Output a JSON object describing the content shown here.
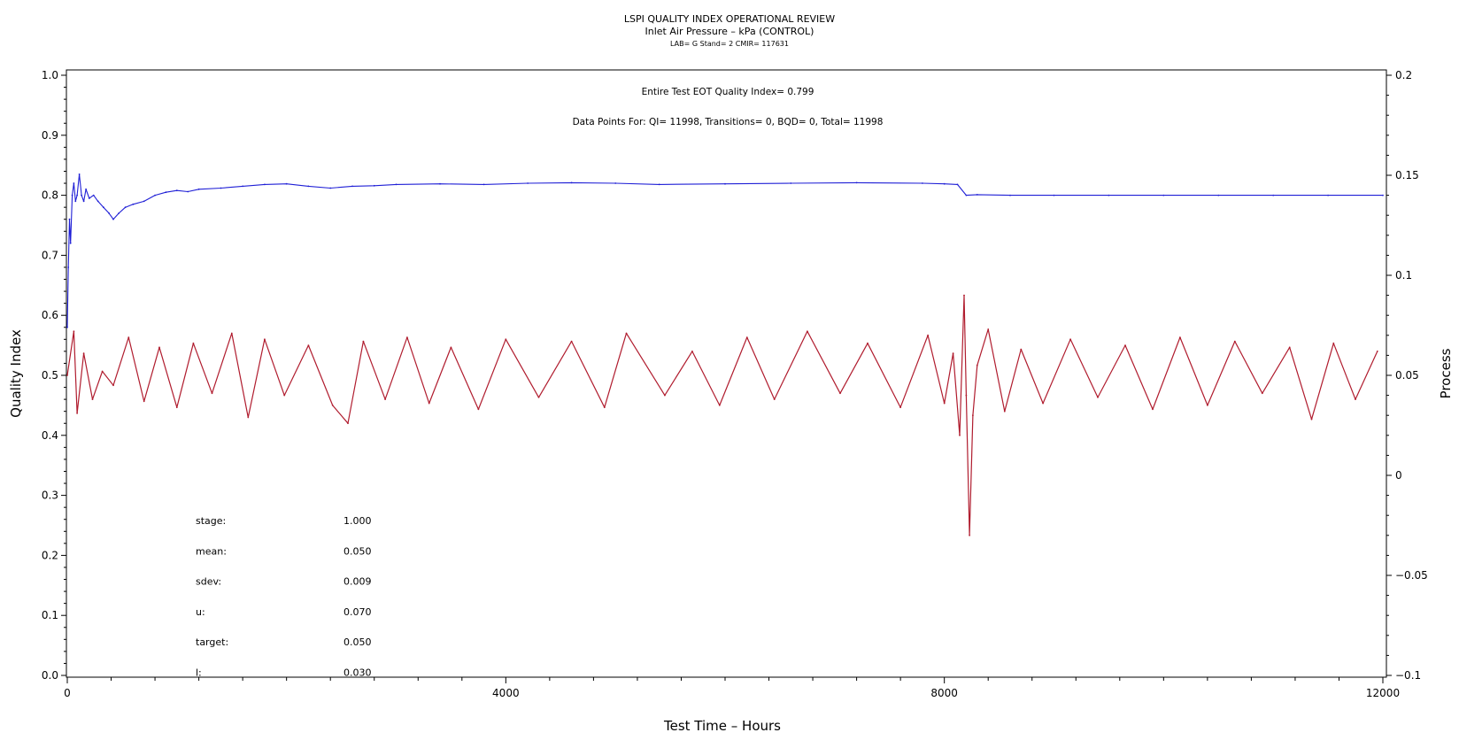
{
  "chart_data": {
    "type": "line",
    "title": "LSPI QUALITY INDEX OPERATIONAL REVIEW",
    "subtitle": "Inlet Air Pressure – kPa (CONTROL)",
    "subtitle2": "LAB= G Stand= 2 CMIR= 117631",
    "annotation1": "Entire Test EOT Quality Index=   0.799",
    "annotation2": "Data Points For: QI= 11998, Transitions=     0, BQD=     0, Total= 11998",
    "xlabel": "Test Time – Hours",
    "ylabel": "Quality Index",
    "y2label": "Process",
    "xlim": [
      0,
      12000
    ],
    "ylim": [
      0.0,
      1.0
    ],
    "y2lim": [
      -0.1,
      0.2
    ],
    "x_ticks": [
      "0",
      "4000",
      "8000",
      "12000"
    ],
    "y_ticks": [
      "0.0",
      "0.1",
      "0.2",
      "0.3",
      "0.4",
      "0.5",
      "0.6",
      "0.7",
      "0.8",
      "0.9",
      "1.0"
    ],
    "y2_ticks": [
      "−0.1",
      "−0.05",
      "0",
      "0.05",
      "0.1",
      "0.15",
      "0.2"
    ],
    "grid": false,
    "colors": {
      "quality_index": "#1f1fd6",
      "process": "#b01c2e"
    },
    "series": [
      {
        "axis": "left",
        "x": [
          0,
          10,
          20,
          30,
          45,
          60,
          75,
          90,
          110,
          130,
          150,
          170,
          200,
          240,
          280,
          330,
          380,
          420,
          470,
          530,
          600,
          700,
          800,
          900,
          1000,
          1100,
          1200,
          1400,
          1600,
          1800,
          2000,
          2200,
          2400,
          2600,
          2800,
          3000,
          3400,
          3800,
          4200,
          4600,
          5000,
          5400,
          6000,
          6600,
          7200,
          7800,
          8000,
          8120,
          8200,
          8300,
          8600,
          9000,
          9500,
          10000,
          10500,
          11000,
          11500,
          12000
        ],
        "values": [
          0.58,
          0.68,
          0.76,
          0.72,
          0.8,
          0.82,
          0.79,
          0.8,
          0.835,
          0.8,
          0.79,
          0.81,
          0.795,
          0.8,
          0.79,
          0.78,
          0.77,
          0.76,
          0.77,
          0.78,
          0.785,
          0.79,
          0.8,
          0.805,
          0.808,
          0.806,
          0.81,
          0.812,
          0.815,
          0.818,
          0.819,
          0.815,
          0.812,
          0.815,
          0.816,
          0.818,
          0.819,
          0.818,
          0.82,
          0.821,
          0.82,
          0.818,
          0.819,
          0.82,
          0.821,
          0.82,
          0.819,
          0.818,
          0.8,
          0.801,
          0.8,
          0.8,
          0.8,
          0.8,
          0.8,
          0.8,
          0.8,
          0.8
        ]
      },
      {
        "axis": "right",
        "x": [
          0,
          60,
          90,
          150,
          230,
          320,
          420,
          560,
          700,
          840,
          1000,
          1150,
          1320,
          1500,
          1650,
          1800,
          1980,
          2200,
          2420,
          2560,
          2700,
          2900,
          3100,
          3300,
          3500,
          3750,
          4000,
          4300,
          4600,
          4900,
          5100,
          5450,
          5700,
          5950,
          6200,
          6450,
          6750,
          7050,
          7300,
          7600,
          7850,
          8000,
          8080,
          8140,
          8180,
          8200,
          8230,
          8260,
          8300,
          8400,
          8550,
          8700,
          8900,
          9150,
          9400,
          9650,
          9900,
          10150,
          10400,
          10650,
          10900,
          11150,
          11350,
          11550,
          11750,
          11950
        ],
        "values": [
          0.05,
          0.072,
          0.031,
          0.061,
          0.038,
          0.052,
          0.045,
          0.069,
          0.037,
          0.064,
          0.034,
          0.066,
          0.041,
          0.071,
          0.029,
          0.068,
          0.04,
          0.065,
          0.035,
          0.026,
          0.067,
          0.038,
          0.069,
          0.036,
          0.064,
          0.033,
          0.068,
          0.039,
          0.067,
          0.034,
          0.071,
          0.04,
          0.062,
          0.035,
          0.069,
          0.038,
          0.072,
          0.041,
          0.066,
          0.034,
          0.07,
          0.036,
          0.061,
          0.02,
          0.09,
          0.04,
          -0.03,
          0.03,
          0.055,
          0.073,
          0.032,
          0.063,
          0.036,
          0.068,
          0.039,
          0.065,
          0.033,
          0.069,
          0.035,
          0.067,
          0.041,
          0.064,
          0.028,
          0.066,
          0.038,
          0.062
        ]
      }
    ]
  },
  "stats": [
    {
      "label": "stage:",
      "value": "1.000"
    },
    {
      "label": "mean:",
      "value": "0.050"
    },
    {
      "label": "sdev:",
      "value": "0.009"
    },
    {
      "label": "u:",
      "value": "0.070"
    },
    {
      "label": "target:",
      "value": "0.050"
    },
    {
      "label": "l:",
      "value": "0.030"
    }
  ]
}
